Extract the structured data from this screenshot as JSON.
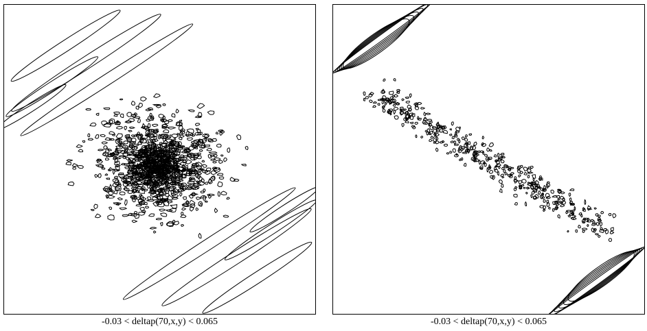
{
  "panels": [
    {
      "caption": "-0.03 < deltap(70,x,y) < 0.065"
    },
    {
      "caption": "-0.03 < deltap(70,x,y) < 0.065"
    }
  ],
  "style": {
    "line_color": "#000000",
    "background": "#ffffff"
  }
}
